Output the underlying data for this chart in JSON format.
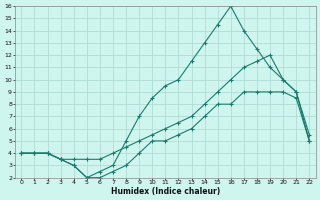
{
  "xlabel": "Humidex (Indice chaleur)",
  "bg_color": "#cff5ef",
  "line_color": "#1a7a6e",
  "grid_color": "#b0ddd6",
  "xlim": [
    -0.5,
    22.5
  ],
  "ylim": [
    2,
    16
  ],
  "xticks": [
    0,
    1,
    2,
    3,
    4,
    5,
    6,
    7,
    8,
    9,
    10,
    11,
    12,
    13,
    14,
    15,
    16,
    17,
    18,
    19,
    20,
    21,
    22
  ],
  "yticks": [
    2,
    3,
    4,
    5,
    6,
    7,
    8,
    9,
    10,
    11,
    12,
    13,
    14,
    15,
    16
  ],
  "curve1_x": [
    0,
    1,
    2,
    3,
    4,
    5,
    6,
    7,
    8,
    9,
    10,
    11,
    12,
    13,
    14,
    15,
    16,
    17,
    18,
    19,
    20,
    21,
    22
  ],
  "curve1_y": [
    4,
    4,
    4,
    3.5,
    3,
    2,
    2,
    2.5,
    3,
    4,
    5,
    5,
    5.5,
    6,
    7,
    8,
    8,
    9,
    9,
    9,
    9,
    8.5,
    5
  ],
  "curve2_x": [
    0,
    1,
    2,
    3,
    4,
    5,
    6,
    7,
    8,
    9,
    10,
    11,
    12,
    13,
    14,
    15,
    16,
    17,
    18,
    19,
    20,
    21,
    22
  ],
  "curve2_y": [
    4,
    4,
    4,
    3.5,
    3,
    2,
    2.5,
    3,
    5,
    7,
    8.5,
    9.5,
    10,
    11.5,
    13,
    14.5,
    16,
    14,
    12.5,
    11,
    10,
    9,
    5
  ],
  "curve3_x": [
    0,
    1,
    2,
    3,
    4,
    5,
    6,
    7,
    8,
    9,
    10,
    11,
    12,
    13,
    14,
    15,
    16,
    17,
    18,
    19,
    20,
    21,
    22
  ],
  "curve3_y": [
    4,
    4,
    4,
    3.5,
    3.5,
    3.5,
    3.5,
    4,
    4.5,
    5,
    5.5,
    6,
    6.5,
    7,
    8,
    9,
    10,
    11,
    11.5,
    12,
    10,
    9,
    5.5
  ]
}
